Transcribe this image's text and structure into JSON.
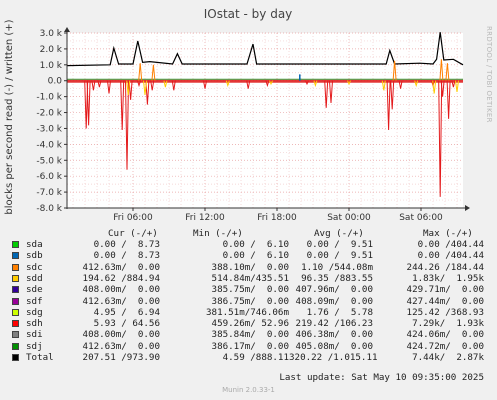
{
  "chart_data": {
    "type": "line",
    "title": "IOstat - by day",
    "ylabel": "blocks per second read (-) / written (+)",
    "side_text": "RRDTOOL / TOBI OETIKER",
    "ylim": [
      -8000,
      3000
    ],
    "yticks": [
      {
        "v": 3000,
        "label": "3.0 k"
      },
      {
        "v": 2000,
        "label": "2.0 k"
      },
      {
        "v": 1000,
        "label": "1.0 k"
      },
      {
        "v": 0,
        "label": "0.0"
      },
      {
        "v": -1000,
        "label": "-1.0 k"
      },
      {
        "v": -2000,
        "label": "-2.0 k"
      },
      {
        "v": -3000,
        "label": "-3.0 k"
      },
      {
        "v": -4000,
        "label": "-4.0 k"
      },
      {
        "v": -5000,
        "label": "-5.0 k"
      },
      {
        "v": -6000,
        "label": "-6.0 k"
      },
      {
        "v": -7000,
        "label": "-7.0 k"
      },
      {
        "v": -8000,
        "label": "-8.0 k"
      }
    ],
    "xlim": [
      0,
      30
    ],
    "xticks": [
      {
        "v": 6,
        "label": "Fri 06:00"
      },
      {
        "v": 12,
        "label": "Fri 12:00"
      },
      {
        "v": 18,
        "label": "Fri 18:00"
      },
      {
        "v": 24,
        "label": "Sat 00:00"
      },
      {
        "v": 30,
        "label": "Sat 06:00"
      }
    ],
    "x_hours_start": 0.5,
    "x_hours_end": 33.5,
    "series": [
      {
        "name": "sdh",
        "color": "#e41a1c",
        "points": [
          [
            2.1,
            -3000
          ],
          [
            2.3,
            -2800
          ],
          [
            2.7,
            -600
          ],
          [
            3.2,
            -400
          ],
          [
            4.0,
            -800
          ],
          [
            5.1,
            -3100
          ],
          [
            5.5,
            -5600
          ],
          [
            5.8,
            -1200
          ],
          [
            6.5,
            -300
          ],
          [
            7.2,
            -1500
          ],
          [
            7.6,
            -600
          ],
          [
            9.4,
            -600
          ],
          [
            12.0,
            -500
          ],
          [
            15.6,
            -500
          ],
          [
            17.2,
            -300
          ],
          [
            20.5,
            -200
          ],
          [
            22.1,
            -1700
          ],
          [
            22.5,
            -1400
          ],
          [
            27.3,
            -3100
          ],
          [
            27.6,
            -1800
          ],
          [
            28.3,
            -500
          ],
          [
            31.0,
            -300
          ],
          [
            31.6,
            -7300
          ],
          [
            31.8,
            -1000
          ],
          [
            32.3,
            -2400
          ],
          [
            32.7,
            -400
          ]
        ]
      },
      {
        "name": "sdd",
        "color": "#ffcc00",
        "points": [
          [
            5.6,
            -900
          ],
          [
            7.0,
            -900
          ],
          [
            8.7,
            -400
          ],
          [
            13.9,
            -300
          ],
          [
            17.5,
            -200
          ],
          [
            21.2,
            -300
          ],
          [
            24.0,
            -200
          ],
          [
            26.9,
            -600
          ],
          [
            29.6,
            -300
          ],
          [
            31.1,
            -800
          ],
          [
            33.0,
            -700
          ]
        ]
      },
      {
        "name": "Total",
        "color": "#000000",
        "points": [
          [
            0.5,
            950
          ],
          [
            4.1,
            1000
          ],
          [
            4.4,
            2050
          ],
          [
            4.8,
            1050
          ],
          [
            6.0,
            1050
          ],
          [
            6.4,
            2500
          ],
          [
            6.8,
            1150
          ],
          [
            7.4,
            1200
          ],
          [
            9.3,
            1050
          ],
          [
            9.7,
            1700
          ],
          [
            10.1,
            1050
          ],
          [
            15.5,
            1050
          ],
          [
            16.0,
            2300
          ],
          [
            16.3,
            1050
          ],
          [
            27.1,
            1050
          ],
          [
            27.4,
            1900
          ],
          [
            27.8,
            1050
          ],
          [
            29.9,
            1100
          ],
          [
            31.0,
            1050
          ],
          [
            31.3,
            1350
          ],
          [
            31.6,
            3050
          ],
          [
            31.9,
            1300
          ],
          [
            32.7,
            1350
          ],
          [
            33.5,
            1000
          ]
        ]
      },
      {
        "name": "sdc",
        "color": "#ff7f00",
        "points": [
          [
            6.6,
            1100
          ],
          [
            7.7,
            1000
          ],
          [
            27.8,
            1250
          ],
          [
            31.7,
            1350
          ],
          [
            32.2,
            1100
          ]
        ]
      },
      {
        "name": "sdb",
        "color": "#0066b3",
        "points": [
          [
            19.9,
            400
          ]
        ]
      }
    ]
  },
  "legend": {
    "headers": {
      "cur": "Cur (-/+)",
      "min": "Min (-/+)",
      "avg": "Avg (-/+)",
      "max": "Max (-/+)"
    },
    "rows": [
      {
        "name": "sda",
        "color": "#00cc00",
        "cur": "0.00 /  8.73",
        "min": "0.00 /  6.10",
        "avg": "0.00 /  9.51",
        "max": "0.00 /404.44"
      },
      {
        "name": "sdb",
        "color": "#0066b3",
        "cur": "0.00 /  8.73",
        "min": "0.00 /  6.10",
        "avg": "0.00 /  9.51",
        "max": "0.00 /404.44"
      },
      {
        "name": "sdc",
        "color": "#ff8000",
        "cur": "412.63m/  0.00",
        "min": "388.10m/  0.00",
        "avg": "1.10 /544.08m",
        "max": "244.26 /184.44"
      },
      {
        "name": "sdd",
        "color": "#ffcc00",
        "cur": "194.62 /884.94",
        "min": "514.84m/435.51",
        "avg": "96.35 /883.55",
        "max": "1.83k/  1.95k"
      },
      {
        "name": "sde",
        "color": "#330099",
        "cur": "408.00m/  0.00",
        "min": "385.75m/  0.00",
        "avg": "407.96m/  0.00",
        "max": "429.71m/  0.00"
      },
      {
        "name": "sdf",
        "color": "#990099",
        "cur": "412.63m/  0.00",
        "min": "386.75m/  0.00",
        "avg": "408.09m/  0.00",
        "max": "427.44m/  0.00"
      },
      {
        "name": "sdg",
        "color": "#ccff00",
        "cur": "4.95 /  6.94",
        "min": "381.51m/746.06m",
        "avg": "1.76 /  5.78",
        "max": "125.42 /368.93"
      },
      {
        "name": "sdh",
        "color": "#ff0000",
        "cur": "5.93 / 64.56",
        "min": "459.26m/ 52.96",
        "avg": "219.42 /106.23",
        "max": "7.29k/  1.93k"
      },
      {
        "name": "sdi",
        "color": "#808080",
        "cur": "408.00m/  0.00",
        "min": "385.84m/  0.00",
        "avg": "406.38m/  0.00",
        "max": "424.06m/  0.00"
      },
      {
        "name": "sdj",
        "color": "#008f00",
        "cur": "412.63m/  0.00",
        "min": "386.17m/  0.00",
        "avg": "405.08m/  0.00",
        "max": "424.72m/  0.00"
      },
      {
        "name": "Total",
        "color": "#000000",
        "cur": "207.51 /973.90",
        "min": "4.59 /888.11",
        "avg": "320.22 /1.015.11",
        "max": "7.44k/  2.87k"
      }
    ]
  },
  "last_update": "Last update:  Sat May 10 09:35:00 2025",
  "footer": "Munin 2.0.33-1"
}
